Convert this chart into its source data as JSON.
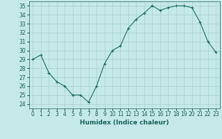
{
  "x": [
    0,
    1,
    2,
    3,
    4,
    5,
    6,
    7,
    8,
    9,
    10,
    11,
    12,
    13,
    14,
    15,
    16,
    17,
    18,
    19,
    20,
    21,
    22,
    23
  ],
  "y": [
    29,
    29.5,
    27.5,
    26.5,
    26,
    25,
    25,
    24.2,
    26,
    28.5,
    30,
    30.5,
    32.5,
    33.5,
    34.2,
    35,
    34.5,
    34.8,
    35,
    35,
    34.8,
    33.2,
    31,
    29.8
  ],
  "line_color": "#1a6b5a",
  "marker": "+",
  "marker_color": "#1a6b5a",
  "bg_color": "#c5e8e8",
  "grid_color": "#aacfcf",
  "xlabel": "Humidex (Indice chaleur)",
  "xlim": [
    -0.5,
    23.5
  ],
  "ylim": [
    23.5,
    35.5
  ],
  "yticks": [
    24,
    25,
    26,
    27,
    28,
    29,
    30,
    31,
    32,
    33,
    34,
    35
  ],
  "xticks": [
    0,
    1,
    2,
    3,
    4,
    5,
    6,
    7,
    8,
    9,
    10,
    11,
    12,
    13,
    14,
    15,
    16,
    17,
    18,
    19,
    20,
    21,
    22,
    23
  ],
  "font_color": "#1a5f5a",
  "label_fontsize": 6.5,
  "tick_fontsize": 5.5
}
